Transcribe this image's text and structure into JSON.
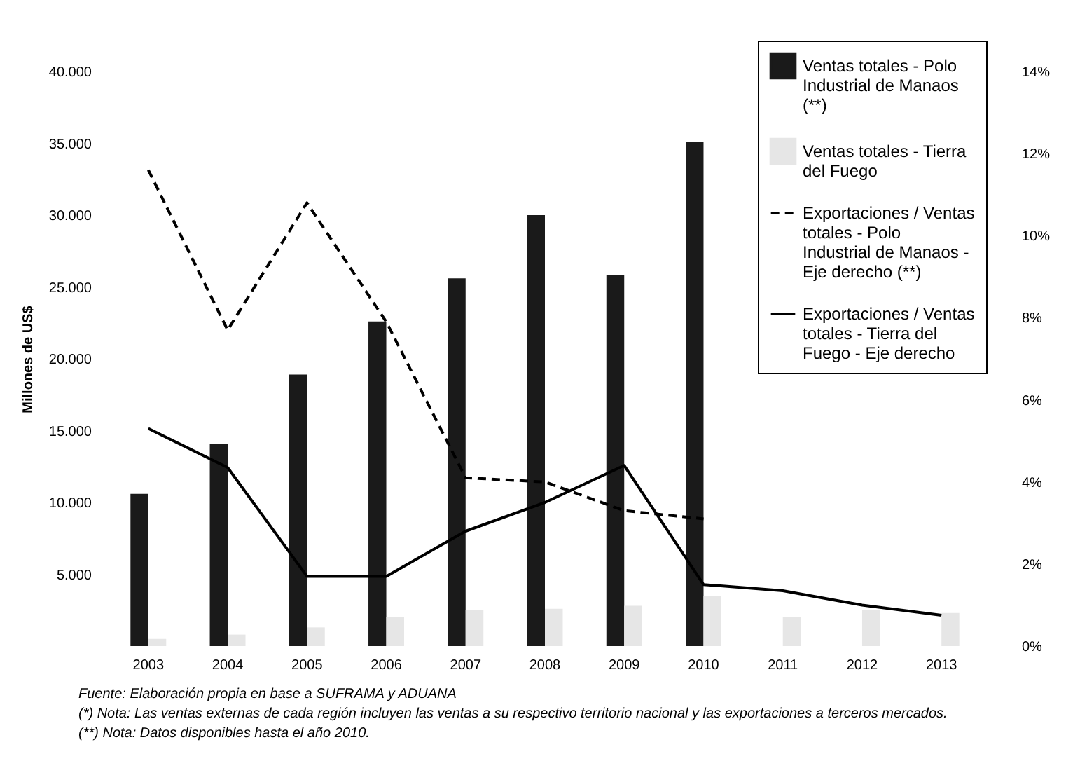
{
  "chart_data": {
    "type": "bar",
    "categories": [
      "2003",
      "2004",
      "2005",
      "2006",
      "2007",
      "2008",
      "2009",
      "2010",
      "2011",
      "2012",
      "2013"
    ],
    "ylabel": "Millones de US$",
    "ylim": [
      0,
      40000
    ],
    "yticks": [
      {
        "value": 5000,
        "label": "5.000"
      },
      {
        "value": 10000,
        "label": "10.000"
      },
      {
        "value": 15000,
        "label": "15.000"
      },
      {
        "value": 20000,
        "label": "20.000"
      },
      {
        "value": 25000,
        "label": "25.000"
      },
      {
        "value": 30000,
        "label": "30.000"
      },
      {
        "value": 35000,
        "label": "35.000"
      },
      {
        "value": 40000,
        "label": "40.000"
      }
    ],
    "y2lim": [
      0,
      14
    ],
    "y2ticks": [
      {
        "value": 0,
        "label": "0%"
      },
      {
        "value": 2,
        "label": "2%"
      },
      {
        "value": 4,
        "label": "4%"
      },
      {
        "value": 6,
        "label": "6%"
      },
      {
        "value": 8,
        "label": "8%"
      },
      {
        "value": 10,
        "label": "10%"
      },
      {
        "value": 12,
        "label": "12%"
      },
      {
        "value": 14,
        "label": "14%"
      }
    ],
    "series": [
      {
        "name": "Ventas totales - Polo Industrial de Manaos (**)",
        "color": "#1a1a1a",
        "values": [
          10600,
          14100,
          18900,
          22600,
          25600,
          30000,
          25800,
          35100,
          null,
          null,
          null
        ]
      },
      {
        "name": "Ventas totales - Tierra del Fuego",
        "color": "#e6e6e6",
        "values": [
          500,
          800,
          1300,
          2000,
          2500,
          2600,
          2800,
          3500,
          2000,
          2500,
          2300
        ]
      },
      {
        "name": "Exportaciones / Ventas totales - Polo Industrial de Manaos - Eje derecho (**)",
        "type": "line",
        "axis": "y2",
        "line_style": "dashed",
        "color": "#000000",
        "values": [
          11.6,
          7.7,
          10.8,
          7.9,
          4.1,
          4.0,
          3.3,
          3.1,
          null,
          null,
          null
        ]
      },
      {
        "name": "Exportaciones / Ventas totales - Tierra del Fuego - Eje derecho",
        "type": "line",
        "axis": "y2",
        "line_style": "solid",
        "color": "#000000",
        "values": [
          5.3,
          4.35,
          1.7,
          1.7,
          2.8,
          3.5,
          4.4,
          1.5,
          1.35,
          1.0,
          0.75
        ]
      }
    ],
    "legend": "top right",
    "grid": false,
    "annotations": [
      "Fuente: Elaboración propia en base a SUFRAMA y ADUANA",
      "(*) Nota: Las ventas externas de cada región incluyen las ventas a su respectivo territorio nacional y las exportaciones a terceros mercados.",
      "(**) Nota: Datos disponibles hasta el año 2010."
    ]
  }
}
